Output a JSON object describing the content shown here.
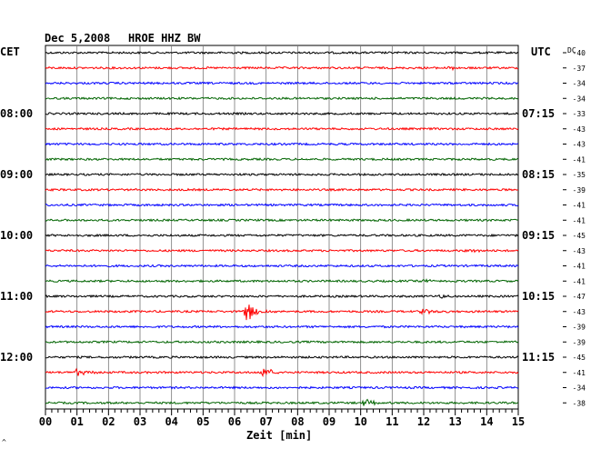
{
  "header": {
    "date": "Dec 5,2008",
    "station": "HROE HHZ BW",
    "left_timezone": "CET",
    "right_timezone": "UTC",
    "dc_label": "DC"
  },
  "xaxis": {
    "label": "Zeit [min]",
    "ticks": [
      "00",
      "01",
      "02",
      "03",
      "04",
      "05",
      "06",
      "07",
      "08",
      "09",
      "10",
      "11",
      "12",
      "13",
      "14",
      "15"
    ]
  },
  "left_hour_labels": [
    "08:00",
    "09:00",
    "10:00",
    "11:00",
    "12:00"
  ],
  "right_hour_labels": [
    "07:15",
    "08:15",
    "09:15",
    "10:15",
    "11:15"
  ],
  "corner_mark": "^",
  "colors": {
    "line1": "#000000",
    "line2": "#ff0000",
    "line3": "#0000ff",
    "line4": "#006400",
    "grid": "#000000"
  },
  "chart_data": {
    "type": "line",
    "title": "Dec 5,2008   HROE HHZ BW",
    "xlabel": "Zeit [min]",
    "xlim": [
      0,
      15
    ],
    "trace_minutes": 15,
    "series_color_cycle": [
      "black",
      "red",
      "blue",
      "green"
    ],
    "dc_offsets": [
      -40,
      -37,
      -34,
      -34,
      -33,
      -43,
      -43,
      -41,
      -35,
      -39,
      -41,
      -41,
      -45,
      -43,
      -41,
      -41,
      -47,
      -43,
      -39,
      -39,
      -45,
      -41,
      -34,
      -38
    ],
    "hour_label_rows": [
      4,
      8,
      12,
      16,
      20
    ],
    "events": [
      {
        "trace": 1,
        "minute": 12.8,
        "amplitude": 0.4
      },
      {
        "trace": 17,
        "minute": 6.4,
        "amplitude": 1.8
      },
      {
        "trace": 17,
        "minute": 12.0,
        "amplitude": 0.5
      },
      {
        "trace": 16,
        "minute": 12.5,
        "amplitude": 0.4
      },
      {
        "trace": 21,
        "minute": 1.0,
        "amplitude": 0.6
      },
      {
        "trace": 21,
        "minute": 6.9,
        "amplitude": 0.9
      },
      {
        "trace": 23,
        "minute": 10.1,
        "amplitude": 0.7
      },
      {
        "trace": 13,
        "minute": 13.4,
        "amplitude": 0.3
      },
      {
        "trace": 15,
        "minute": 12.0,
        "amplitude": 0.3
      }
    ]
  }
}
